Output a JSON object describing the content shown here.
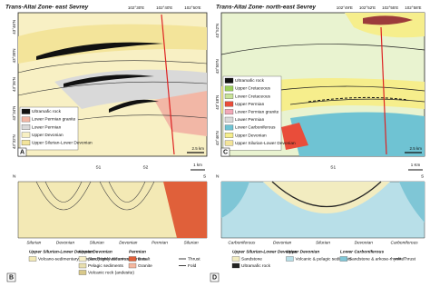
{
  "panels": [
    {
      "label": "A",
      "title": "Trans-Altai Zone- east Sevrey",
      "lon": [
        "102°30'E",
        "102°40'E",
        "102°50'E"
      ],
      "lat": [
        "43°46'N",
        "43°38'N",
        "43°36'N",
        "43°34'N",
        "43°32'N"
      ],
      "legend": [
        {
          "label": "Ultramafic rock",
          "color": "#111111"
        },
        {
          "label": "Lower Permian granite",
          "color": "#f2b7a6"
        },
        {
          "label": "Lower Permian",
          "color": "#d9d9d9"
        },
        {
          "label": "Upper Devonian",
          "color": "#f8f0c4"
        },
        {
          "label": "Upper Silurian-Lower Devonian",
          "color": "#f3e49a"
        }
      ],
      "scale": "2.5 km"
    },
    {
      "label": "C",
      "title": "Trans-Altai Zone- north-east Sevrey",
      "lon": [
        "102°49'E",
        "102°52'E",
        "102°55'E",
        "102°58'E"
      ],
      "lat": [
        "43°52'N",
        "43°50'N",
        "43°48'N",
        "43°46'N"
      ],
      "legend": [
        {
          "label": "Ultramafic rock",
          "color": "#111111"
        },
        {
          "label": "Upper Cretaceous",
          "color": "#9ccf5a"
        },
        {
          "label": "Lower Cretaceous",
          "color": "#c9e39a"
        },
        {
          "label": "Upper Permian",
          "color": "#e94d3a"
        },
        {
          "label": "Lower Permian granite",
          "color": "#f2a9b8"
        },
        {
          "label": "Lower Permian",
          "color": "#d9d9d9"
        },
        {
          "label": "Lower Carboniferous",
          "color": "#6fc3d3"
        },
        {
          "label": "Upper Devonian",
          "color": "#f6ee8c"
        },
        {
          "label": "Upper Silurian-Lower Devonian",
          "color": "#f3e49a"
        }
      ],
      "scale": "2.5 km"
    }
  ],
  "sections": [
    {
      "label": "B",
      "ends": [
        "N",
        "S"
      ],
      "structures": [
        "S1",
        "S2"
      ],
      "scale": "1 km",
      "units": [
        "Silurian",
        "Devonian",
        "Silurian",
        "Devonian",
        "Permian",
        "Silurian"
      ],
      "legend": [
        {
          "title": "Upper Silurian-Lower Devonian",
          "items": [
            {
              "label": "Volcano-sedimentary complex (highly deformed)",
              "color": "#f3e9b5"
            }
          ]
        },
        {
          "title": "Upper Devonian",
          "items": [
            {
              "label": "Sandstone/volcanic sediments",
              "color": "#f7efc8"
            },
            {
              "label": "Pelagic sediments",
              "color": "#e8dfb0"
            },
            {
              "label": "Volcanic rock (andesite)",
              "color": "#d8c88a"
            }
          ]
        },
        {
          "title": "Permian",
          "items": [
            {
              "label": "Basalt",
              "color": "#e0603a"
            },
            {
              "label": "Granite",
              "color": "#f5b8a0"
            }
          ]
        }
      ],
      "symbols": [
        "Thrust",
        "Fold"
      ]
    },
    {
      "label": "D",
      "ends": [
        "N",
        "S"
      ],
      "structures": [
        "S1"
      ],
      "scale": "1 Km",
      "units": [
        "Carboniferous",
        "Devonian",
        "Silurian",
        "Devonian",
        "Carboniferous"
      ],
      "legend": [
        {
          "title": "Upper Silurian-Lower Devonian",
          "items": [
            {
              "label": "Sandstone",
              "color": "#f2ecc0"
            },
            {
              "label": "Ultramafic rock",
              "color": "#222222"
            }
          ]
        },
        {
          "title": "Upper Devonian",
          "items": [
            {
              "label": "Volcanic & pelagic sediments",
              "color": "#b8dfe8"
            }
          ]
        },
        {
          "title": "Lower Carboniferous",
          "items": [
            {
              "label": "Sandstone & arkose-rhyolite",
              "color": "#7fc6d6"
            }
          ]
        }
      ],
      "symbols": [
        "Thrust"
      ]
    }
  ]
}
